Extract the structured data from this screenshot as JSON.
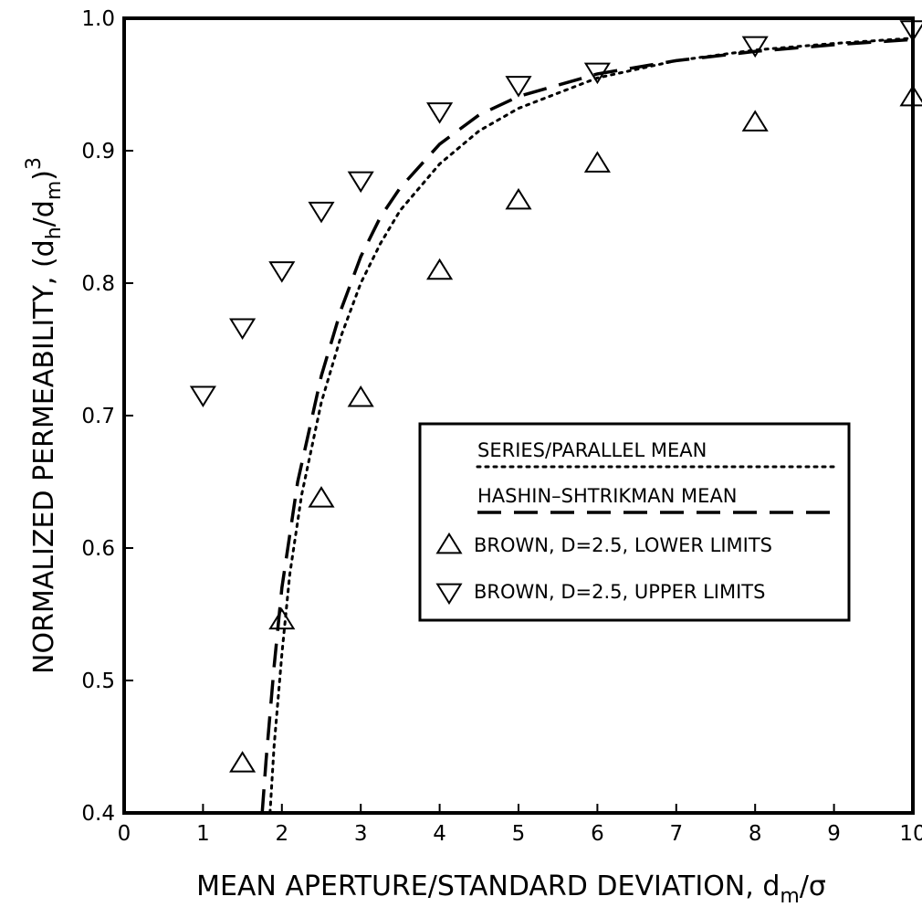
{
  "chart_data": {
    "type": "scatter",
    "xlabel": "MEAN APERTURE/STANDARD DEVIATION,  d",
    "xlabel_sub": "m",
    "xlabel_tail": "/σ",
    "ylabel": "NORMALIZED PERMEABILITY,  (d",
    "ylabel_sub1": "h",
    "ylabel_mid": "/d",
    "ylabel_sub2": "m",
    "ylabel_tail": ")",
    "ylabel_sup": "3",
    "xlim": [
      0,
      10
    ],
    "ylim": [
      0.4,
      1.0
    ],
    "x_ticks": [
      0,
      1,
      2,
      3,
      4,
      5,
      6,
      7,
      8,
      9,
      10
    ],
    "x_tick_labels": [
      "0",
      "1",
      "2",
      "3",
      "4",
      "5",
      "6",
      "7",
      "8",
      "9",
      "10"
    ],
    "y_ticks": [
      0.4,
      0.5,
      0.6,
      0.7,
      0.8,
      0.9,
      1.0
    ],
    "y_tick_labels": [
      "0.4",
      "0.5",
      "0.6",
      "0.7",
      "0.8",
      "0.9",
      "1.0"
    ],
    "grid": false,
    "legend_position": "center-right",
    "series": [
      {
        "name": "SERIES/PARALLEL MEAN",
        "kind": "line",
        "style": "dotted",
        "x": [
          1.85,
          1.9,
          2.0,
          2.1,
          2.25,
          2.5,
          2.75,
          3.0,
          3.25,
          3.5,
          4.0,
          4.5,
          5.0,
          6.0,
          7.0,
          8.0,
          9.0,
          10.0
        ],
        "y": [
          0.4,
          0.45,
          0.52,
          0.58,
          0.64,
          0.71,
          0.76,
          0.8,
          0.83,
          0.855,
          0.89,
          0.915,
          0.932,
          0.955,
          0.968,
          0.976,
          0.981,
          0.985
        ]
      },
      {
        "name": "HASHIN–SHTRIKMAN MEAN",
        "kind": "line",
        "style": "dashed",
        "x": [
          1.75,
          1.8,
          1.9,
          2.0,
          2.2,
          2.5,
          2.75,
          3.0,
          3.25,
          3.5,
          4.0,
          4.5,
          5.0,
          6.0,
          7.0,
          8.0,
          9.0,
          10.0
        ],
        "y": [
          0.4,
          0.44,
          0.51,
          0.57,
          0.65,
          0.73,
          0.78,
          0.82,
          0.85,
          0.872,
          0.905,
          0.927,
          0.941,
          0.958,
          0.968,
          0.975,
          0.98,
          0.984
        ]
      },
      {
        "name": "BROWN, D=2.5, LOWER LIMITS",
        "kind": "scatter",
        "marker": "triangle-up",
        "x": [
          1.5,
          2.0,
          2.5,
          3.0,
          4.0,
          5.0,
          6.0,
          8.0,
          10.0
        ],
        "y": [
          0.437,
          0.545,
          0.637,
          0.713,
          0.809,
          0.862,
          0.89,
          0.921,
          0.94
        ]
      },
      {
        "name": "BROWN, D=2.5, UPPER LIMITS",
        "kind": "scatter",
        "marker": "triangle-down",
        "x": [
          1.0,
          1.5,
          2.0,
          2.5,
          3.0,
          4.0,
          5.0,
          6.0,
          8.0,
          10.0
        ],
        "y": [
          0.716,
          0.767,
          0.81,
          0.855,
          0.878,
          0.93,
          0.95,
          0.96,
          0.98,
          0.992
        ]
      }
    ]
  }
}
